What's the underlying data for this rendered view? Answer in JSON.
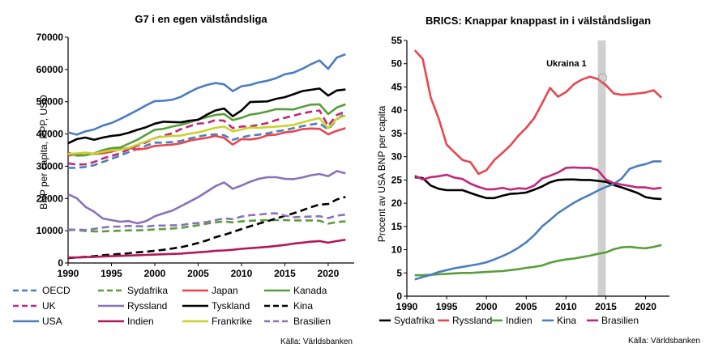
{
  "chart_data": [
    {
      "type": "line",
      "title": "G7 i en egen välståndsliga",
      "ylabel": "BNP per capita, PPP, USD",
      "xlabel": "",
      "xlim": [
        1990,
        2023
      ],
      "ylim": [
        0,
        70000
      ],
      "xticks": [
        1990,
        1995,
        2000,
        2005,
        2010,
        2015,
        2020
      ],
      "yticks": [
        0,
        10000,
        20000,
        30000,
        40000,
        50000,
        60000,
        70000
      ],
      "source": "Källa: Världsbanken",
      "grid": false,
      "legend_position": "bottom",
      "x": [
        1990,
        1991,
        1992,
        1993,
        1994,
        1995,
        1996,
        1997,
        1998,
        1999,
        2000,
        2001,
        2002,
        2003,
        2004,
        2005,
        2006,
        2007,
        2008,
        2009,
        2010,
        2011,
        2012,
        2013,
        2014,
        2015,
        2016,
        2017,
        2018,
        2019,
        2020,
        2021,
        2022
      ],
      "series": [
        {
          "name": "OECD",
          "color": "#4a7ebf",
          "dash": "dash",
          "values": [
            29500,
            29500,
            29800,
            30300,
            31300,
            32300,
            33300,
            34400,
            35300,
            36400,
            37300,
            37300,
            37500,
            37800,
            38600,
            39200,
            39700,
            39900,
            39600,
            38200,
            39000,
            39500,
            39800,
            40200,
            40800,
            41200,
            41800,
            42400,
            42900,
            43300,
            41400,
            44500,
            46500
          ]
        },
        {
          "name": "Sydafrika",
          "color": "#5a9e3a",
          "dash": "dash",
          "values": [
            10400,
            10200,
            9900,
            9800,
            9800,
            9900,
            10000,
            10100,
            10100,
            10200,
            10400,
            10500,
            10700,
            10900,
            11300,
            11700,
            12200,
            12600,
            12900,
            12600,
            12900,
            13100,
            13200,
            13300,
            13300,
            13300,
            13200,
            13200,
            13200,
            13100,
            12200,
            12700,
            12900
          ]
        },
        {
          "name": "Japan",
          "color": "#e8464f",
          "dash": "solid",
          "values": [
            33300,
            33800,
            34200,
            33800,
            34000,
            34500,
            35300,
            35700,
            35200,
            35500,
            36300,
            36500,
            36700,
            37100,
            37900,
            38400,
            38800,
            39400,
            38800,
            36700,
            38400,
            38300,
            38700,
            39600,
            39800,
            40500,
            40800,
            41500,
            41700,
            41600,
            39900,
            41000,
            41800
          ]
        },
        {
          "name": "Kanada",
          "color": "#5a9e3a",
          "dash": "solid",
          "values": [
            34200,
            33300,
            33400,
            34000,
            35000,
            35600,
            35800,
            37000,
            38200,
            39800,
            41300,
            41600,
            42300,
            42800,
            43600,
            44500,
            45200,
            45900,
            46200,
            44300,
            45000,
            46000,
            46400,
            47000,
            47700,
            47700,
            47600,
            48400,
            49100,
            49200,
            46200,
            48200,
            49200
          ]
        },
        {
          "name": "UK",
          "color": "#c2277a",
          "dash": "dash",
          "values": [
            30900,
            30500,
            30600,
            31300,
            32400,
            33200,
            34000,
            35300,
            36400,
            37400,
            38700,
            39500,
            40200,
            41500,
            42400,
            43200,
            43400,
            44300,
            44100,
            41800,
            42300,
            42400,
            42800,
            43400,
            44300,
            45000,
            45700,
            46400,
            46900,
            47300,
            42500,
            45900,
            47000
          ]
        },
        {
          "name": "Ryssland",
          "color": "#8a72b8",
          "dash": "solid",
          "values": [
            21300,
            20100,
            17400,
            15900,
            13800,
            13300,
            12800,
            13000,
            12300,
            13000,
            14500,
            15400,
            16200,
            17600,
            19000,
            20400,
            22100,
            23800,
            25000,
            23000,
            24000,
            25200,
            26100,
            26600,
            26600,
            26100,
            26000,
            26500,
            27200,
            27600,
            26900,
            28500,
            27800
          ]
        },
        {
          "name": "Tyskland",
          "color": "#000000",
          "dash": "solid",
          "values": [
            37100,
            38400,
            38900,
            38200,
            38900,
            39400,
            39700,
            40400,
            41300,
            42100,
            43200,
            43800,
            43700,
            43600,
            44100,
            44400,
            46000,
            47300,
            47900,
            45500,
            47300,
            49900,
            50000,
            50100,
            50900,
            51400,
            52300,
            53300,
            53700,
            54100,
            51900,
            53500,
            53800
          ]
        },
        {
          "name": "Kina",
          "color": "#000000",
          "dash": "dash",
          "values": [
            1500,
            1700,
            1900,
            2100,
            2400,
            2600,
            2800,
            3000,
            3300,
            3500,
            3800,
            4100,
            4500,
            4900,
            5500,
            6200,
            7000,
            8000,
            8700,
            9600,
            10500,
            11400,
            12200,
            13000,
            13800,
            14600,
            15400,
            16300,
            17300,
            18100,
            18300,
            19700,
            20500
          ]
        },
        {
          "name": "USA",
          "color": "#4a7ebf",
          "dash": "solid",
          "values": [
            40500,
            39800,
            40800,
            41400,
            42600,
            43400,
            44600,
            46000,
            47400,
            48900,
            50200,
            50300,
            50600,
            51500,
            53000,
            54300,
            55200,
            55800,
            55400,
            53300,
            54800,
            55200,
            56000,
            56500,
            57300,
            58500,
            59000,
            60200,
            61600,
            62800,
            60200,
            63700,
            64700
          ]
        },
        {
          "name": "Indien",
          "color": "#b2185a",
          "dash": "solid",
          "values": [
            1700,
            1700,
            1800,
            1900,
            2000,
            2100,
            2200,
            2300,
            2400,
            2500,
            2600,
            2700,
            2800,
            2900,
            3100,
            3300,
            3500,
            3800,
            3900,
            4100,
            4400,
            4600,
            4800,
            5000,
            5300,
            5600,
            6000,
            6300,
            6600,
            6800,
            6300,
            6800,
            7200
          ]
        },
        {
          "name": "Frankrike",
          "color": "#c8d42a",
          "dash": "solid",
          "values": [
            33800,
            34000,
            34200,
            33900,
            34500,
            34900,
            35100,
            35700,
            36700,
            37700,
            38800,
            39200,
            39400,
            39500,
            40100,
            40500,
            41200,
            41900,
            42300,
            40800,
            41400,
            42000,
            41900,
            42100,
            42300,
            42500,
            42800,
            43600,
            44300,
            44900,
            41800,
            44700,
            45700
          ]
        },
        {
          "name": "Brasilien",
          "color": "#8a72b8",
          "dash": "dash",
          "values": [
            10100,
            10400,
            10200,
            10600,
            11000,
            11300,
            11300,
            11500,
            11400,
            11300,
            11600,
            11600,
            11700,
            11700,
            12200,
            12400,
            12700,
            13300,
            13800,
            13600,
            14400,
            14800,
            15000,
            15300,
            15400,
            14700,
            14200,
            14300,
            14400,
            14500,
            13900,
            14700,
            15000
          ]
        }
      ]
    },
    {
      "type": "line",
      "title": "BRICS: Knappar knappast in i välståndsligan",
      "ylabel": "Procent av USA BNP per capita",
      "xlabel": "",
      "xlim": [
        1990,
        2023
      ],
      "ylim": [
        0,
        55
      ],
      "xticks": [
        1990,
        1995,
        2000,
        2005,
        2010,
        2015,
        2020
      ],
      "yticks": [
        0,
        5,
        10,
        15,
        20,
        25,
        30,
        35,
        40,
        45,
        50,
        55
      ],
      "source": "Källa: Världsbanken",
      "grid": false,
      "legend_position": "bottom",
      "annotation": {
        "text": "Ukraina 1",
        "x": 2014,
        "y": 47,
        "band_x": [
          2014,
          2015
        ]
      },
      "x": [
        1991,
        1992,
        1993,
        1994,
        1995,
        1996,
        1997,
        1998,
        1999,
        2000,
        2001,
        2002,
        2003,
        2004,
        2005,
        2006,
        2007,
        2008,
        2009,
        2010,
        2011,
        2012,
        2013,
        2014,
        2015,
        2016,
        2017,
        2018,
        2019,
        2020,
        2021,
        2022
      ],
      "series": [
        {
          "name": "Sydafrika",
          "color": "#000000",
          "values": [
            25.6,
            25.4,
            23.8,
            23.1,
            22.8,
            22.8,
            22.8,
            22.2,
            21.6,
            21.1,
            21.1,
            21.6,
            22.0,
            22.1,
            22.3,
            22.9,
            23.6,
            24.5,
            25.0,
            25.1,
            25.1,
            25.0,
            25.0,
            24.8,
            24.6,
            23.9,
            23.4,
            22.8,
            22.2,
            21.3,
            21.0,
            20.9
          ]
        },
        {
          "name": "Ryssland",
          "color": "#e8464f",
          "values": [
            52.9,
            51.0,
            42.7,
            38.2,
            32.6,
            30.9,
            29.3,
            28.8,
            26.3,
            27.1,
            29.3,
            30.8,
            32.4,
            34.5,
            36.2,
            38.3,
            41.5,
            44.8,
            42.9,
            43.9,
            45.6,
            46.6,
            47.2,
            46.7,
            45.4,
            43.6,
            43.3,
            43.4,
            43.6,
            43.8,
            44.3,
            42.7
          ]
        },
        {
          "name": "Indien",
          "color": "#5a9e3a",
          "values": [
            4.5,
            4.5,
            4.6,
            4.7,
            4.8,
            4.9,
            5.0,
            5.0,
            5.1,
            5.2,
            5.3,
            5.4,
            5.6,
            5.8,
            6.1,
            6.3,
            6.6,
            7.2,
            7.6,
            7.9,
            8.1,
            8.4,
            8.7,
            9.1,
            9.4,
            10.1,
            10.5,
            10.6,
            10.4,
            10.3,
            10.6,
            11.0
          ]
        },
        {
          "name": "Kina",
          "color": "#4a7ebf",
          "values": [
            3.6,
            4.1,
            4.6,
            5.2,
            5.6,
            6.0,
            6.3,
            6.6,
            6.9,
            7.3,
            7.9,
            8.6,
            9.4,
            10.4,
            11.6,
            13.1,
            15.0,
            16.4,
            17.9,
            19.0,
            20.1,
            21.0,
            21.8,
            22.7,
            23.5,
            24.1,
            25.3,
            27.4,
            28.0,
            28.4,
            29.0,
            29.0
          ]
        },
        {
          "name": "Brasilien",
          "color": "#c2277a",
          "values": [
            25.9,
            25.1,
            25.6,
            25.8,
            26.1,
            25.5,
            25.2,
            24.2,
            23.5,
            23.0,
            23.0,
            23.3,
            22.9,
            23.2,
            23.1,
            23.8,
            25.3,
            25.9,
            26.6,
            27.6,
            27.7,
            27.6,
            27.6,
            27.1,
            25.1,
            24.3,
            24.0,
            23.7,
            23.4,
            23.4,
            23.1,
            23.3
          ]
        }
      ]
    }
  ]
}
